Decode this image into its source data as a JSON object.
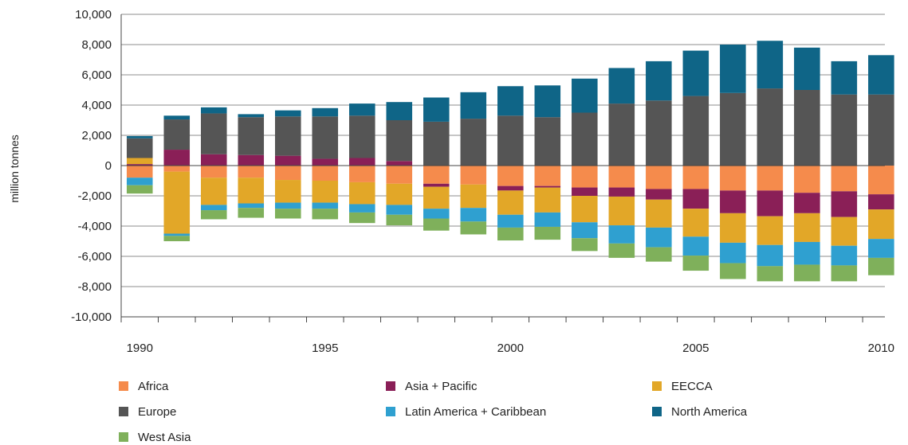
{
  "chart_data": {
    "type": "bar",
    "stacked": true,
    "diverging": true,
    "ylabel": "million tonnes",
    "ylim": [
      -10000,
      10000
    ],
    "yticks": [
      -10000,
      -8000,
      -6000,
      -4000,
      -2000,
      0,
      2000,
      4000,
      6000,
      8000,
      10000
    ],
    "ytick_labels": [
      "-10,000",
      "-8,000",
      "-6,000",
      "-4,000",
      "-2,000",
      "0",
      "2,000",
      "4,000",
      "6,000",
      "8,000",
      "10,000"
    ],
    "categories": [
      1990,
      1991,
      1992,
      1993,
      1994,
      1995,
      1996,
      1997,
      1998,
      1999,
      2000,
      2001,
      2002,
      2003,
      2004,
      2005,
      2006,
      2007,
      2008,
      2009,
      2010
    ],
    "xtick_labels": [
      "1990",
      "1995",
      "2000",
      "2005",
      "2010"
    ],
    "xtick_label_values": [
      1990,
      1995,
      2000,
      2005,
      2010
    ],
    "grid": true,
    "legend_position": "bottom",
    "series": [
      {
        "name": "Africa",
        "color": "#F58B4C",
        "values": [
          -800,
          -400,
          -800,
          -800,
          -950,
          -1000,
          -1100,
          -1200,
          -1200,
          -1250,
          -1350,
          -1350,
          -1450,
          -1450,
          -1550,
          -1550,
          -1650,
          -1650,
          -1800,
          -1700,
          -1900
        ]
      },
      {
        "name": "Asia + Pacific",
        "color": "#8A1F57",
        "values": [
          100,
          1050,
          750,
          700,
          650,
          450,
          500,
          300,
          -200,
          0,
          -300,
          -100,
          -550,
          -600,
          -700,
          -1300,
          -1500,
          -1700,
          -1350,
          -1700,
          -1000
        ]
      },
      {
        "name": "EECCA",
        "color": "#E2A728",
        "values": [
          400,
          -4100,
          -1800,
          -1700,
          -1500,
          -1450,
          -1450,
          -1400,
          -1450,
          -1550,
          -1600,
          -1650,
          -1750,
          -1900,
          -1850,
          -1850,
          -1950,
          -1900,
          -1900,
          -1900,
          -1950
        ]
      },
      {
        "name": "Europe",
        "color": "#555555",
        "values": [
          1300,
          2000,
          2700,
          2500,
          2600,
          2800,
          2800,
          2700,
          2900,
          3100,
          3300,
          3200,
          3500,
          4100,
          4300,
          4600,
          4800,
          5100,
          5000,
          4700,
          4700
        ]
      },
      {
        "name": "Latin America + Caribbean",
        "color": "#2FA0D0",
        "values": [
          -500,
          -150,
          -350,
          -300,
          -400,
          -400,
          -550,
          -650,
          -650,
          -900,
          -850,
          -950,
          -1050,
          -1200,
          -1300,
          -1250,
          -1350,
          -1400,
          -1500,
          -1300,
          -1250
        ]
      },
      {
        "name": "North America",
        "color": "#0F6587",
        "values": [
          150,
          250,
          400,
          200,
          400,
          550,
          800,
          1200,
          1600,
          1750,
          1950,
          2100,
          2250,
          2350,
          2600,
          3000,
          3200,
          3150,
          2800,
          2200,
          2600
        ]
      },
      {
        "name": "West Asia",
        "color": "#7FB05B",
        "values": [
          -550,
          -350,
          -600,
          -650,
          -650,
          -700,
          -700,
          -700,
          -800,
          -850,
          -850,
          -850,
          -850,
          -950,
          -950,
          -1000,
          -1050,
          -1000,
          -1100,
          -1050,
          -1150
        ]
      }
    ]
  }
}
